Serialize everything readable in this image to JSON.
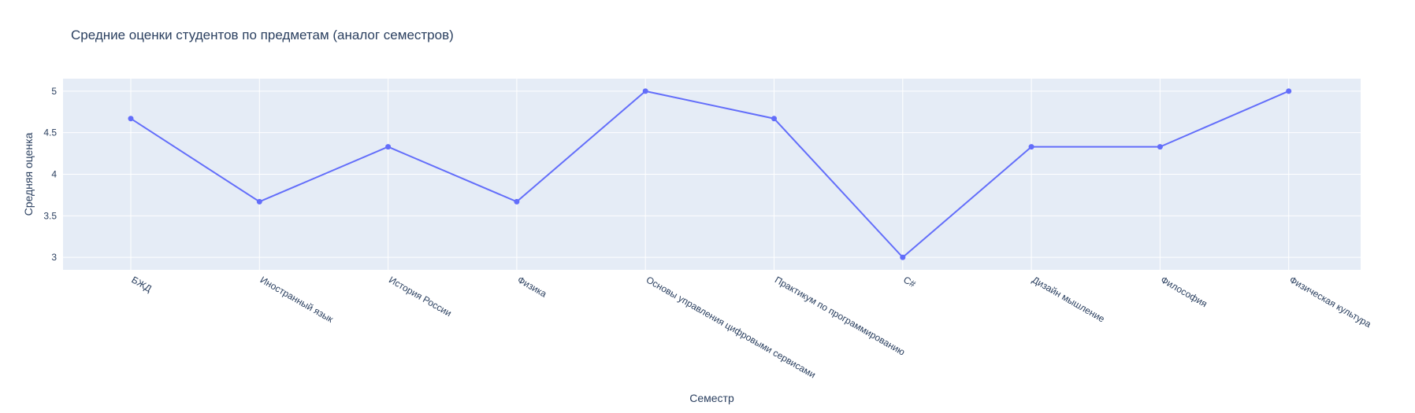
{
  "chart_data": {
    "type": "line",
    "title": "Средние оценки студентов по предметам (аналог семестров)",
    "xlabel": "Семестр",
    "ylabel": "Средняя оценка",
    "categories": [
      "БЖД",
      "Иностранный язык",
      "История России",
      "Физика",
      "Основы управления цифровыми сервисами",
      "Практикум по программированию",
      "C#",
      "Дизайн мышление",
      "Философия",
      "Физическая культура"
    ],
    "values": [
      4.67,
      3.67,
      4.33,
      3.67,
      5,
      4.67,
      3,
      4.33,
      4.33,
      5
    ],
    "ylim": [
      2.85,
      5.15
    ],
    "yticks": [
      3,
      3.5,
      4,
      4.5,
      5
    ],
    "ytick_labels": [
      "3",
      "3.5",
      "4",
      "4.5",
      "5"
    ],
    "grid": true,
    "legend": "none",
    "colors": {
      "line": "#636efa",
      "plot_bg": "#e5ecf6",
      "grid": "#ffffff",
      "text": "#2a3f5f"
    }
  }
}
